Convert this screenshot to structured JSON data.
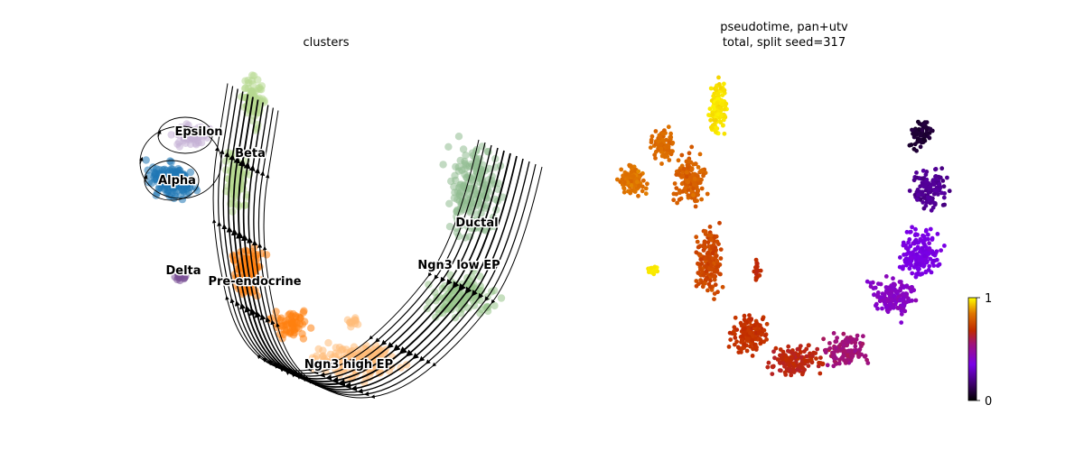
{
  "chart_data": [
    {
      "type": "scatter",
      "subtype": "umap-embedding-with-velocity-streamlines",
      "title": "clusters",
      "axes_visible": false,
      "legend": "labels on data",
      "clusters": [
        {
          "name": "Epsilon",
          "color": "#c5b0d5",
          "label_at": [
            0.48,
            0.8
          ]
        },
        {
          "name": "Alpha",
          "color": "#1f77b4",
          "label_at": [
            0.41,
            0.71
          ]
        },
        {
          "name": "Beta",
          "color": "#b7d98f",
          "label_at": [
            0.55,
            0.76
          ]
        },
        {
          "name": "Delta",
          "color": "#7a5195",
          "label_at": [
            0.44,
            0.52
          ]
        },
        {
          "name": "Pre-endocrine",
          "color": "#ff7f0e",
          "label_at": [
            0.53,
            0.5
          ]
        },
        {
          "name": "Ngn3 high EP",
          "color": "#ffbb78",
          "label_at": [
            0.59,
            0.31
          ]
        },
        {
          "name": "Ngn3 low EP",
          "color": "#98c48a",
          "label_at": [
            0.73,
            0.58
          ]
        },
        {
          "name": "Ductal",
          "color": "#8fbc8f",
          "label_at": [
            0.74,
            0.66
          ]
        }
      ],
      "streamlines": "black arrows following the trajectory Ductal → Ngn3 low EP → Ngn3 high EP → Pre-endocrine → Alpha/Beta/Delta/Epsilon"
    },
    {
      "type": "scatter",
      "subtype": "umap-embedding-colored-by-continuous-value",
      "title_line1": "pseudotime, pan+utv",
      "title_line2": "total, split seed=317",
      "axes_visible": false,
      "colormap": "gnuplot",
      "colorbar": {
        "min": 0,
        "max": 1,
        "ticks": [
          "0",
          "1"
        ],
        "placement": "right"
      },
      "value_trend": "0 (dark) at the Ductal tip rising to 1 (yellow) at Beta and Delta tips"
    }
  ]
}
